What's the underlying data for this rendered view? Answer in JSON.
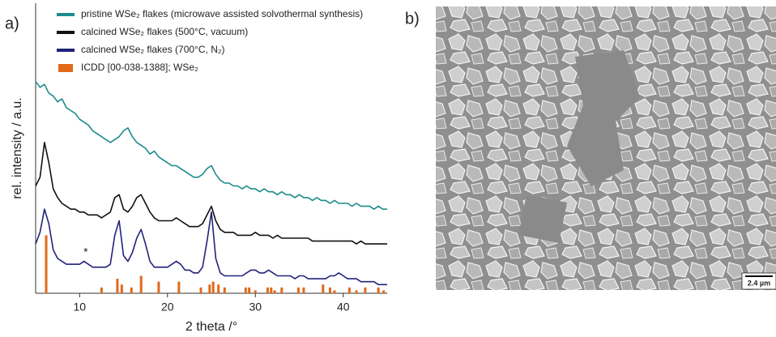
{
  "panel_labels": [
    "a)",
    "b)"
  ],
  "chart_data": {
    "type": "line",
    "xlabel": "2 theta /°",
    "ylabel": "rel. intensity / a.u.",
    "xlim": [
      5,
      45
    ],
    "ylim": [
      0,
      100
    ],
    "xticks": [
      10,
      20,
      30,
      40
    ],
    "legend": "upper right",
    "x": [
      5,
      5.5,
      6,
      6.5,
      7,
      7.5,
      8,
      8.5,
      9,
      9.5,
      10,
      10.5,
      11,
      11.5,
      12,
      12.5,
      13,
      13.5,
      14,
      14.5,
      15,
      15.5,
      16,
      16.5,
      17,
      17.5,
      18,
      18.5,
      19,
      19.5,
      20,
      20.5,
      21,
      21.5,
      22,
      22.5,
      23,
      23.5,
      24,
      24.5,
      25,
      25.5,
      26,
      26.5,
      27,
      27.5,
      28,
      28.5,
      29,
      29.5,
      30,
      30.5,
      31,
      31.5,
      32,
      32.5,
      33,
      33.5,
      34,
      34.5,
      35,
      35.5,
      36,
      36.5,
      37,
      37.5,
      38,
      38.5,
      39,
      39.5,
      40,
      40.5,
      41,
      41.5,
      42,
      42.5,
      43,
      43.5,
      44,
      44.5,
      45
    ],
    "series": [
      {
        "name": "pristine WSe₂ flakes (microwave assisted solvothermal synthesis)",
        "color": "#1b8c8a",
        "values": [
          73,
          71,
          72,
          69,
          68,
          66,
          67,
          64,
          63,
          62,
          60,
          59,
          58,
          56,
          55,
          54,
          53,
          52,
          53,
          54,
          56,
          57,
          54,
          52,
          51,
          50,
          48,
          49,
          47,
          46,
          45,
          44,
          44,
          43,
          42,
          41,
          40,
          40,
          41,
          43,
          44,
          41,
          39,
          38,
          38,
          37,
          37,
          36,
          37,
          36,
          36,
          35,
          36,
          35,
          35,
          34,
          35,
          34,
          34,
          33,
          34,
          33,
          33,
          32,
          33,
          32,
          32,
          31,
          32,
          31,
          31,
          31,
          30,
          31,
          30,
          30,
          30,
          29,
          30,
          29,
          29
        ]
      },
      {
        "name": "calcined WSe₂ flakes (500°C, vacuum)",
        "color": "#111111",
        "values": [
          37,
          40,
          52,
          45,
          36,
          33,
          31,
          30,
          29,
          29,
          28,
          28,
          27,
          27,
          27,
          26,
          27,
          28,
          33,
          34,
          29,
          28,
          30,
          33,
          34,
          31,
          28,
          26,
          25,
          25,
          25,
          25,
          26,
          25,
          24,
          23,
          23,
          23,
          24,
          27,
          30,
          25,
          22,
          21,
          21,
          21,
          20,
          20,
          20,
          20,
          21,
          20,
          20,
          20,
          19,
          20,
          19,
          19,
          19,
          19,
          19,
          19,
          19,
          18,
          18,
          18,
          18,
          18,
          18,
          18,
          18,
          18,
          18,
          17,
          18,
          17,
          17,
          17,
          17,
          17,
          17
        ]
      },
      {
        "name": "calcined WSe₂ flakes (700°C, N₂)",
        "color": "#22237a",
        "values": [
          17,
          21,
          29,
          24,
          15,
          12,
          11,
          10,
          10,
          10,
          10,
          11,
          10,
          9,
          9,
          9,
          9,
          10,
          20,
          25,
          13,
          11,
          14,
          19,
          22,
          17,
          11,
          9,
          9,
          9,
          9,
          10,
          11,
          10,
          8,
          8,
          7,
          7,
          9,
          18,
          28,
          12,
          7,
          6,
          6,
          6,
          6,
          6,
          7,
          8,
          8,
          7,
          7,
          8,
          7,
          6,
          6,
          6,
          6,
          5,
          6,
          6,
          5,
          5,
          5,
          5,
          5,
          6,
          6,
          7,
          6,
          5,
          5,
          5,
          4,
          4,
          4,
          4,
          3,
          3,
          3
        ]
      },
      {
        "name": "ICDD [00-038-1388]; WSe₂",
        "color": "#e06a1a",
        "type": "bar",
        "x": [
          6.2,
          12.5,
          14.3,
          14.8,
          15.9,
          17.0,
          19.0,
          21.3,
          23.8,
          24.8,
          25.2,
          25.8,
          26.5,
          28.9,
          29.3,
          30.0,
          31.4,
          31.8,
          32.2,
          33.0,
          34.9,
          35.5,
          37.7,
          38.5,
          39.0,
          40.7,
          41.5,
          42.5,
          44.0,
          44.6
        ],
        "values": [
          20,
          2,
          5,
          3,
          2,
          6,
          4,
          4,
          2,
          3,
          4,
          3,
          2,
          2,
          2,
          1,
          2,
          2,
          1,
          2,
          2,
          2,
          3,
          2,
          1,
          2,
          1,
          2,
          2,
          1
        ]
      }
    ],
    "annotations": [
      {
        "text": "*",
        "x": 10.7,
        "y": 14
      }
    ]
  },
  "sem_image": {
    "scale_bar": "2.4 µm"
  }
}
